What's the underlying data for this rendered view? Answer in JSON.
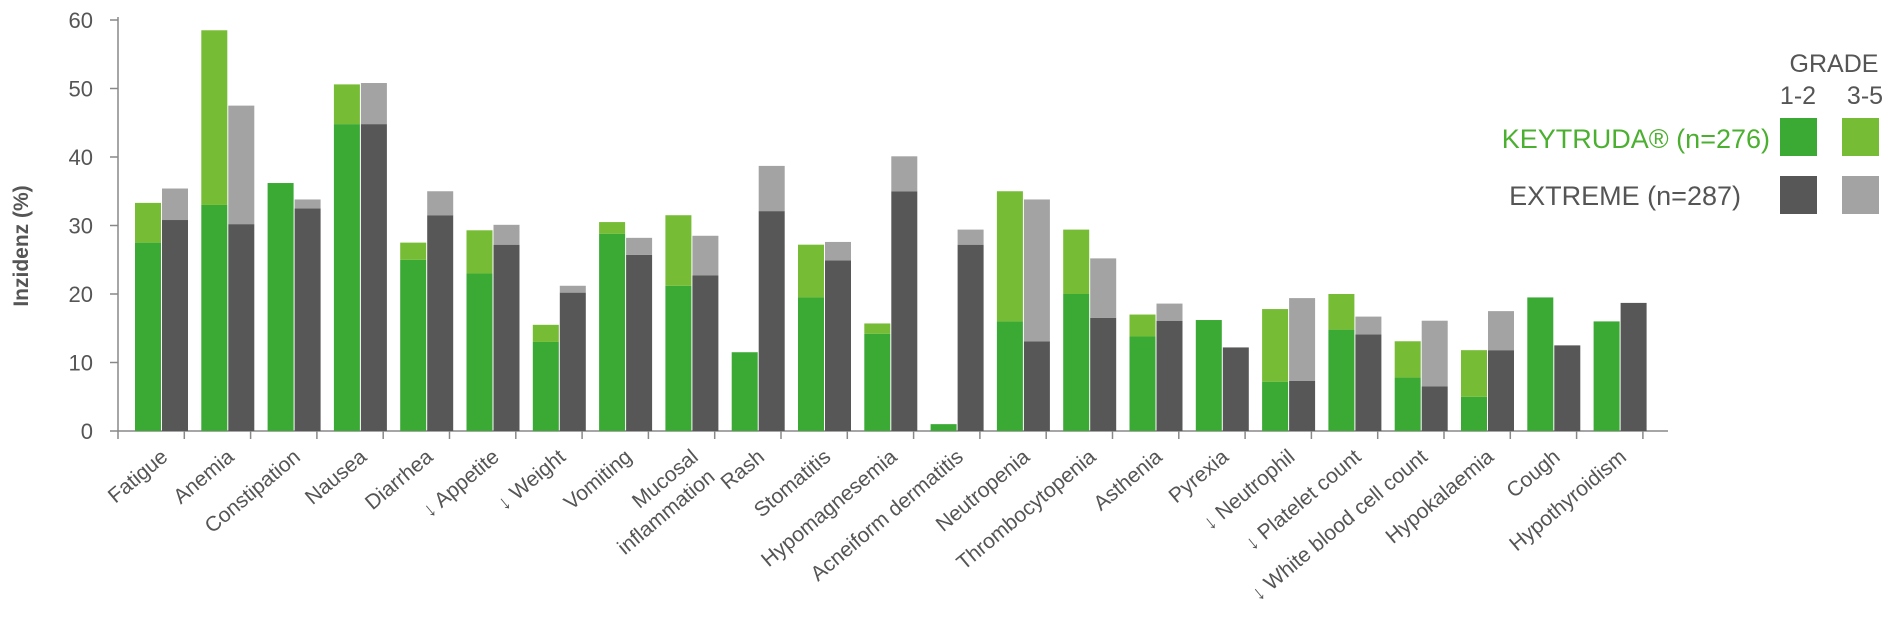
{
  "chart_data": {
    "type": "bar",
    "ylabel": "Inzidenz (%)",
    "ylim": [
      0,
      60
    ],
    "yticks": [
      0,
      10,
      20,
      30,
      40,
      50,
      60
    ],
    "categories": [
      "Fatigue",
      "Anemia",
      "Constipation",
      "Nausea",
      "Diarrhea",
      "↓ Appetite",
      "↓ Weight",
      "Vomiting",
      "Mucosal inflammation",
      "Rash",
      "Stomatitis",
      "Hypomagnesemia",
      "Acneiform dermatitis",
      "Neutropenia",
      "Thrombocytopenia",
      "Asthenia",
      "Pyrexia",
      "↓ Neutrophil",
      "↓ Platelet count",
      "↓ White blood cell count",
      "Hypokalaemia",
      "Cough",
      "Hypothyroidism"
    ],
    "series": [
      {
        "name": "KEYTRUDA® (n=276)",
        "grade_1_2": [
          27.5,
          33,
          36.2,
          44.8,
          25,
          23,
          13,
          28.8,
          21.2,
          11.5,
          19.5,
          14.2,
          1,
          16,
          20,
          13.8,
          16.2,
          7.2,
          14.8,
          7.8,
          5,
          19.5,
          16
        ],
        "grade_3_5": [
          5.8,
          25.5,
          0,
          5.8,
          2.5,
          6.3,
          2.5,
          1.7,
          10.3,
          0,
          7.7,
          1.5,
          0,
          19,
          9.4,
          3.2,
          0,
          10.6,
          5.2,
          5.3,
          6.8,
          0,
          0
        ]
      },
      {
        "name": "EXTREME (n=287)",
        "grade_1_2": [
          30.8,
          30.2,
          32.5,
          44.8,
          31.5,
          27.2,
          20.2,
          25.7,
          22.7,
          32.1,
          24.9,
          35,
          27.2,
          13.1,
          16.5,
          16.1,
          12.2,
          7.3,
          14.1,
          6.5,
          11.8,
          12.5,
          18.7
        ],
        "grade_3_5": [
          4.6,
          17.3,
          1.3,
          6,
          3.5,
          2.9,
          1,
          2.5,
          5.8,
          6.6,
          2.7,
          5.1,
          2.2,
          20.7,
          8.7,
          2.5,
          0,
          12.1,
          2.6,
          9.6,
          5.7,
          0,
          0
        ]
      }
    ],
    "legend": {
      "title": "GRADE",
      "col_1": "1-2",
      "col_2": "3-5",
      "placement": "right"
    }
  },
  "colors": {
    "keytruda_grade_1_2": "#3aaa35",
    "keytruda_grade_3_5": "#76bc35",
    "extreme_grade_1_2": "#575757",
    "extreme_grade_3_5": "#a3a3a3",
    "keytruda_text": "#4bb030",
    "extreme_text": "#555555",
    "axis": "#888888"
  }
}
